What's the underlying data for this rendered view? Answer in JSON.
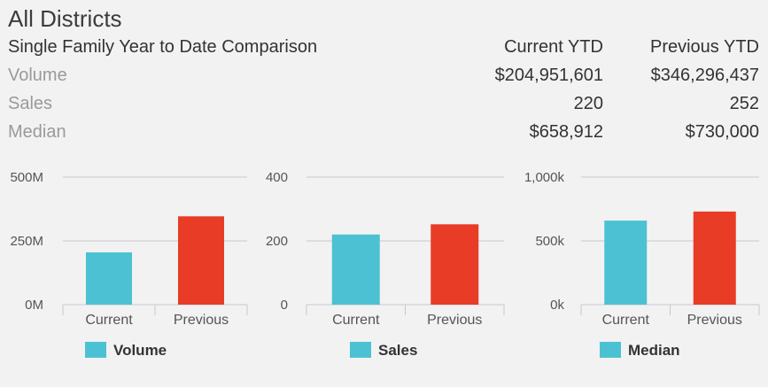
{
  "title": "All Districts",
  "table": {
    "heading": "Single Family Year to Date Comparison",
    "col_current": "Current YTD",
    "col_previous": "Previous YTD",
    "rows": [
      {
        "label": "Volume",
        "current": "$204,951,601",
        "previous": "$346,296,437"
      },
      {
        "label": "Sales",
        "current": "220",
        "previous": "252"
      },
      {
        "label": "Median",
        "current": "$658,912",
        "previous": "$730,000"
      }
    ]
  },
  "colors": {
    "current": "#4cc1d3",
    "previous": "#e83c27",
    "grid": "#c8c8d0",
    "text": "#555555"
  },
  "chart_data": [
    {
      "type": "bar",
      "categories": [
        "Current",
        "Previous"
      ],
      "values": [
        204951601,
        346296437
      ],
      "ylim": [
        0,
        500000000
      ],
      "yticks": [
        0,
        250000000,
        500000000
      ],
      "yticklabels": [
        "0M",
        "250M",
        "500M"
      ],
      "legend": "Volume",
      "legend_position": "bottom-left"
    },
    {
      "type": "bar",
      "categories": [
        "Current",
        "Previous"
      ],
      "values": [
        220,
        252
      ],
      "ylim": [
        0,
        400
      ],
      "yticks": [
        0,
        200,
        400
      ],
      "yticklabels": [
        "0",
        "200",
        "400"
      ],
      "legend": "Sales",
      "legend_position": "bottom-left"
    },
    {
      "type": "bar",
      "categories": [
        "Current",
        "Previous"
      ],
      "values": [
        658912,
        730000
      ],
      "ylim": [
        0,
        1000000
      ],
      "yticks": [
        0,
        500000,
        1000000
      ],
      "yticklabels": [
        "0k",
        "500k",
        "1,000k"
      ],
      "legend": "Median",
      "legend_position": "bottom-left"
    }
  ]
}
